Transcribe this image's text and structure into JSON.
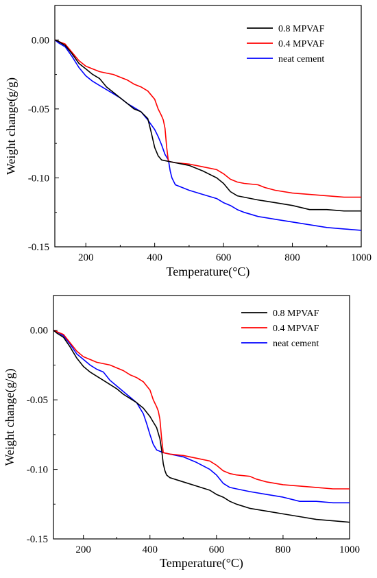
{
  "chart_data": [
    {
      "type": "line",
      "xlabel": "Temperature(°C)",
      "ylabel": "Weight change(g/g)",
      "xlim": [
        110,
        1000
      ],
      "ylim": [
        -0.15,
        0.025
      ],
      "xticks": [
        "200",
        "400",
        "600",
        "800",
        "1000"
      ],
      "xtick_values": [
        200,
        400,
        600,
        800,
        1000
      ],
      "yticks": [
        "0.00",
        "-0.05",
        "-0.10",
        "-0.15"
      ],
      "ytick_values": [
        0.0,
        -0.05,
        -0.1,
        -0.15
      ],
      "legend_position": "top-right",
      "series": [
        {
          "name": "0.8 MPVAF",
          "color": "#000000",
          "x": [
            110,
            120,
            140,
            160,
            180,
            200,
            220,
            240,
            260,
            280,
            300,
            320,
            340,
            360,
            380,
            390,
            400,
            410,
            420,
            440,
            460,
            500,
            540,
            580,
            600,
            620,
            640,
            660,
            700,
            750,
            800,
            850,
            900,
            950,
            1000
          ],
          "y": [
            0.0,
            -0.001,
            -0.004,
            -0.01,
            -0.017,
            -0.021,
            -0.025,
            -0.028,
            -0.034,
            -0.038,
            -0.042,
            -0.046,
            -0.05,
            -0.052,
            -0.057,
            -0.067,
            -0.078,
            -0.084,
            -0.087,
            -0.088,
            -0.089,
            -0.091,
            -0.095,
            -0.1,
            -0.104,
            -0.11,
            -0.113,
            -0.114,
            -0.116,
            -0.118,
            -0.12,
            -0.123,
            -0.123,
            -0.124,
            -0.124
          ]
        },
        {
          "name": "0.4 MPVAF",
          "color": "#ff0000",
          "x": [
            110,
            120,
            140,
            160,
            180,
            200,
            220,
            240,
            260,
            280,
            300,
            320,
            340,
            360,
            380,
            400,
            410,
            420,
            425,
            430,
            435,
            440,
            460,
            500,
            540,
            580,
            600,
            620,
            640,
            660,
            700,
            720,
            750,
            800,
            850,
            900,
            950,
            1000
          ],
          "y": [
            0.0,
            -0.001,
            -0.003,
            -0.009,
            -0.015,
            -0.019,
            -0.021,
            -0.023,
            -0.024,
            -0.025,
            -0.027,
            -0.029,
            -0.032,
            -0.034,
            -0.037,
            -0.043,
            -0.05,
            -0.055,
            -0.058,
            -0.064,
            -0.078,
            -0.088,
            -0.089,
            -0.09,
            -0.092,
            -0.094,
            -0.097,
            -0.101,
            -0.103,
            -0.104,
            -0.105,
            -0.107,
            -0.109,
            -0.111,
            -0.112,
            -0.113,
            -0.114,
            -0.114
          ]
        },
        {
          "name": "neat cement",
          "color": "#0000ff",
          "x": [
            110,
            120,
            140,
            160,
            180,
            200,
            220,
            240,
            260,
            280,
            300,
            320,
            340,
            360,
            380,
            400,
            410,
            420,
            430,
            440,
            445,
            450,
            460,
            500,
            540,
            580,
            600,
            620,
            640,
            660,
            700,
            750,
            800,
            850,
            900,
            950,
            1000
          ],
          "y": [
            0.0,
            -0.002,
            -0.005,
            -0.012,
            -0.02,
            -0.026,
            -0.03,
            -0.033,
            -0.036,
            -0.039,
            -0.042,
            -0.046,
            -0.049,
            -0.052,
            -0.058,
            -0.065,
            -0.07,
            -0.076,
            -0.083,
            -0.087,
            -0.095,
            -0.1,
            -0.105,
            -0.109,
            -0.112,
            -0.115,
            -0.118,
            -0.12,
            -0.123,
            -0.125,
            -0.128,
            -0.13,
            -0.132,
            -0.134,
            -0.136,
            -0.137,
            -0.138
          ]
        }
      ]
    },
    {
      "type": "line",
      "xlabel": "Temperature(°C)",
      "ylabel": "Weight change(g/g)",
      "xlim": [
        110,
        1000
      ],
      "ylim": [
        -0.15,
        0.025
      ],
      "xticks": [
        "200",
        "400",
        "600",
        "800",
        "1000"
      ],
      "xtick_values": [
        200,
        400,
        600,
        800,
        1000
      ],
      "yticks": [
        "0.00",
        "-0.05",
        "-0.10",
        "-0.15"
      ],
      "ytick_values": [
        0.0,
        -0.05,
        -0.1,
        -0.15
      ],
      "legend_position": "top-right",
      "series": [
        {
          "name": "0.8 MPVAF",
          "color": "#000000",
          "x": [
            110,
            120,
            140,
            160,
            180,
            200,
            220,
            240,
            260,
            280,
            300,
            320,
            340,
            360,
            380,
            400,
            410,
            420,
            430,
            435,
            440,
            445,
            450,
            460,
            500,
            540,
            580,
            600,
            620,
            640,
            660,
            700,
            750,
            800,
            850,
            900,
            950,
            1000
          ],
          "y": [
            0.0,
            -0.002,
            -0.005,
            -0.012,
            -0.02,
            -0.026,
            -0.03,
            -0.033,
            -0.036,
            -0.039,
            -0.042,
            -0.046,
            -0.049,
            -0.052,
            -0.056,
            -0.062,
            -0.066,
            -0.07,
            -0.078,
            -0.086,
            -0.096,
            -0.101,
            -0.104,
            -0.106,
            -0.109,
            -0.112,
            -0.115,
            -0.118,
            -0.12,
            -0.123,
            -0.125,
            -0.128,
            -0.13,
            -0.132,
            -0.134,
            -0.136,
            -0.137,
            -0.138
          ]
        },
        {
          "name": "0.4 MPVAF",
          "color": "#ff0000",
          "x": [
            110,
            120,
            140,
            160,
            180,
            200,
            220,
            240,
            260,
            280,
            300,
            320,
            340,
            360,
            380,
            400,
            410,
            420,
            425,
            430,
            435,
            440,
            460,
            500,
            540,
            580,
            600,
            620,
            640,
            660,
            700,
            720,
            750,
            800,
            850,
            900,
            950,
            1000
          ],
          "y": [
            0.0,
            -0.001,
            -0.003,
            -0.009,
            -0.015,
            -0.019,
            -0.021,
            -0.023,
            -0.024,
            -0.025,
            -0.027,
            -0.029,
            -0.032,
            -0.034,
            -0.037,
            -0.043,
            -0.05,
            -0.055,
            -0.058,
            -0.064,
            -0.078,
            -0.088,
            -0.089,
            -0.09,
            -0.092,
            -0.094,
            -0.097,
            -0.101,
            -0.103,
            -0.104,
            -0.105,
            -0.107,
            -0.109,
            -0.111,
            -0.112,
            -0.113,
            -0.114,
            -0.114
          ]
        },
        {
          "name": "neat cement",
          "color": "#0000ff",
          "x": [
            110,
            120,
            140,
            160,
            180,
            200,
            220,
            240,
            260,
            280,
            300,
            320,
            340,
            360,
            380,
            390,
            400,
            410,
            420,
            440,
            460,
            500,
            540,
            580,
            600,
            620,
            640,
            660,
            700,
            750,
            800,
            850,
            900,
            950,
            1000
          ],
          "y": [
            0.0,
            -0.001,
            -0.004,
            -0.01,
            -0.017,
            -0.021,
            -0.025,
            -0.028,
            -0.03,
            -0.036,
            -0.04,
            -0.044,
            -0.048,
            -0.052,
            -0.06,
            -0.067,
            -0.075,
            -0.082,
            -0.086,
            -0.088,
            -0.089,
            -0.091,
            -0.095,
            -0.1,
            -0.104,
            -0.11,
            -0.113,
            -0.114,
            -0.116,
            -0.118,
            -0.12,
            -0.123,
            -0.123,
            -0.124,
            -0.124
          ]
        }
      ]
    }
  ]
}
